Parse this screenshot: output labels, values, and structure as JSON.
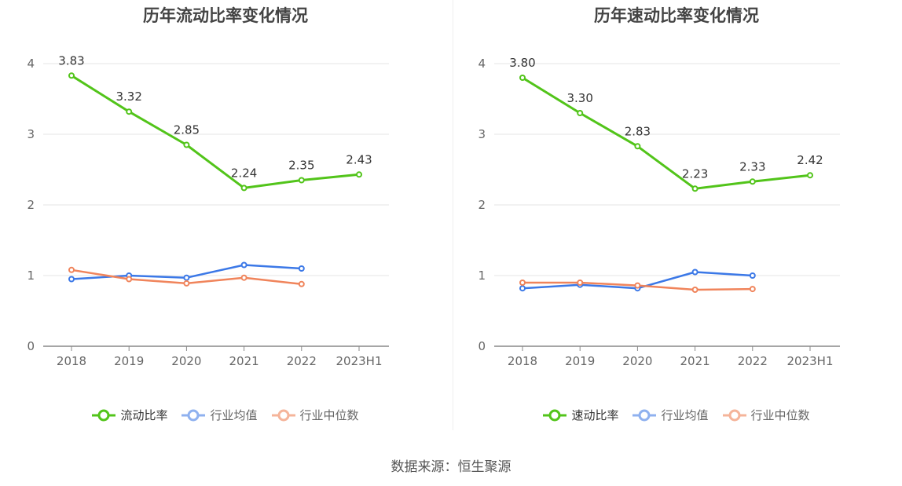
{
  "footer": {
    "source": "数据来源：恒生聚源"
  },
  "colors": {
    "main": "#52c41a",
    "industry_avg": "#3b78e7",
    "industry_median": "#f0845b"
  },
  "chart_data": [
    {
      "type": "line",
      "title": "历年流动比率变化情况",
      "categories": [
        "2018",
        "2019",
        "2020",
        "2021",
        "2022",
        "2023H1"
      ],
      "ylim": [
        0,
        4
      ],
      "yticks": [
        "0",
        "1",
        "2",
        "3",
        "4"
      ],
      "grid": true,
      "legend_position": "bottom",
      "series": [
        {
          "name": "流动比率",
          "color": "#52c41a",
          "values": [
            3.83,
            3.32,
            2.85,
            2.24,
            2.35,
            2.43
          ],
          "labels": [
            "3.83",
            "3.32",
            "2.85",
            "2.24",
            "2.35",
            "2.43"
          ]
        },
        {
          "name": "行业均值",
          "color": "#3b78e7",
          "values": [
            0.95,
            1.0,
            0.97,
            1.15,
            1.1,
            null
          ]
        },
        {
          "name": "行业中位数",
          "color": "#f0845b",
          "values": [
            1.08,
            0.95,
            0.89,
            0.97,
            0.88,
            null
          ]
        }
      ]
    },
    {
      "type": "line",
      "title": "历年速动比率变化情况",
      "categories": [
        "2018",
        "2019",
        "2020",
        "2021",
        "2022",
        "2023H1"
      ],
      "ylim": [
        0,
        4
      ],
      "yticks": [
        "0",
        "1",
        "2",
        "3",
        "4"
      ],
      "grid": true,
      "legend_position": "bottom",
      "series": [
        {
          "name": "速动比率",
          "color": "#52c41a",
          "values": [
            3.8,
            3.3,
            2.83,
            2.23,
            2.33,
            2.42
          ],
          "labels": [
            "3.80",
            "3.30",
            "2.83",
            "2.23",
            "2.33",
            "2.42"
          ]
        },
        {
          "name": "行业均值",
          "color": "#3b78e7",
          "values": [
            0.82,
            0.87,
            0.82,
            1.05,
            1.0,
            null
          ]
        },
        {
          "name": "行业中位数",
          "color": "#f0845b",
          "values": [
            0.9,
            0.9,
            0.86,
            0.8,
            0.81,
            null
          ]
        }
      ]
    }
  ]
}
